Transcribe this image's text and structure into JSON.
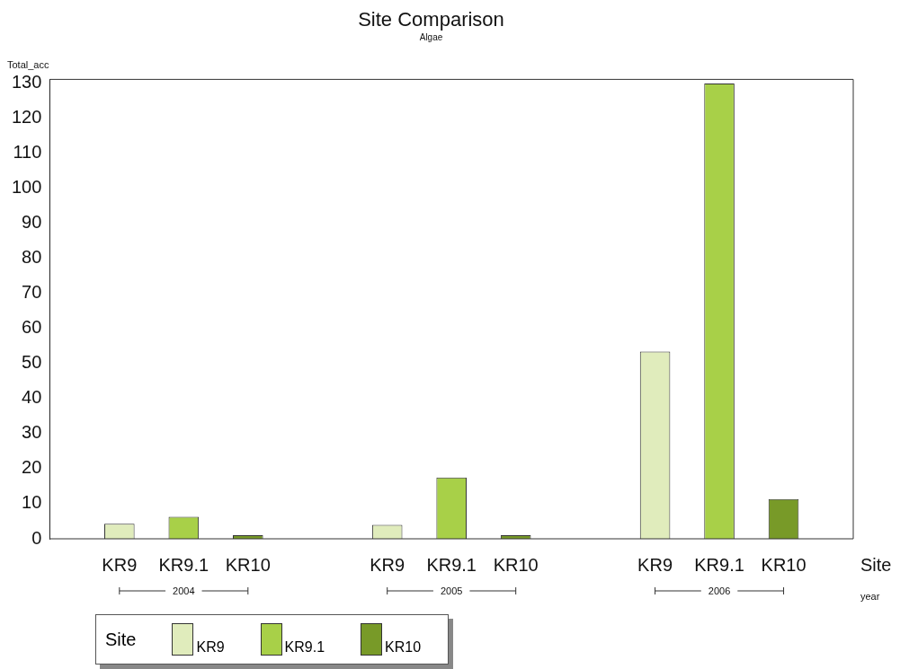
{
  "chart_data": {
    "type": "bar",
    "title": "Site Comparison",
    "subtitle": "Algae",
    "ylabel": "Total_acc",
    "xlabel": "year",
    "legend_title": "Site",
    "annotations": [
      "Site"
    ],
    "categories": [
      "2004",
      "2005",
      "2006"
    ],
    "series": [
      {
        "name": "KR9",
        "color": "#e0ecbc",
        "values": [
          4.3,
          4,
          53.4
        ]
      },
      {
        "name": "KR9.1",
        "color": "#a8d048",
        "values": [
          6.3,
          17.5,
          129.8
        ]
      },
      {
        "name": "KR10",
        "color": "#789a28",
        "values": [
          1,
          1,
          11.3
        ]
      }
    ],
    "ylim": [
      0,
      131
    ],
    "yticks": [
      0,
      10,
      20,
      30,
      40,
      50,
      60,
      70,
      80,
      90,
      100,
      110,
      120,
      130
    ],
    "grid": false,
    "legend": "bottom left"
  }
}
